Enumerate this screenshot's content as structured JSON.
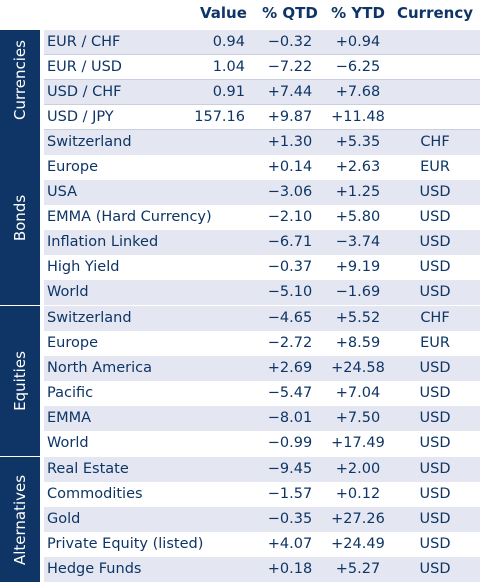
{
  "header": {
    "value": "Value",
    "qtd": "% QTD",
    "ytd": "% YTD",
    "currency": "Currency"
  },
  "groups": [
    {
      "label": "Currencies",
      "rows": [
        {
          "name": "EUR / CHF",
          "value": "0.94",
          "qtd": "−0.32",
          "ytd": "+0.94",
          "currency": ""
        },
        {
          "name": "EUR / USD",
          "value": "1.04",
          "qtd": "−7.22",
          "ytd": "−6.25",
          "currency": ""
        },
        {
          "name": "USD / CHF",
          "value": "0.91",
          "qtd": "+7.44",
          "ytd": "+7.68",
          "currency": ""
        },
        {
          "name": "USD / JPY",
          "value": "157.16",
          "qtd": "+9.87",
          "ytd": "+11.48",
          "currency": ""
        }
      ]
    },
    {
      "label": "Bonds",
      "rows": [
        {
          "name": "Switzerland",
          "value": "",
          "qtd": "+1.30",
          "ytd": "+5.35",
          "currency": "CHF"
        },
        {
          "name": "Europe",
          "value": "",
          "qtd": "+0.14",
          "ytd": "+2.63",
          "currency": "EUR"
        },
        {
          "name": "USA",
          "value": "",
          "qtd": "−3.06",
          "ytd": "+1.25",
          "currency": "USD"
        },
        {
          "name": "EMMA (Hard Currency)",
          "value": "",
          "qtd": "−2.10",
          "ytd": "+5.80",
          "currency": "USD"
        },
        {
          "name": "Inflation Linked",
          "value": "",
          "qtd": "−6.71",
          "ytd": "−3.74",
          "currency": "USD"
        },
        {
          "name": "High Yield",
          "value": "",
          "qtd": "−0.37",
          "ytd": "+9.19",
          "currency": "USD"
        },
        {
          "name": "World",
          "value": "",
          "qtd": "−5.10",
          "ytd": "−1.69",
          "currency": "USD"
        }
      ]
    },
    {
      "label": "Equities",
      "rows": [
        {
          "name": "Switzerland",
          "value": "",
          "qtd": "−4.65",
          "ytd": "+5.52",
          "currency": "CHF"
        },
        {
          "name": "Europe",
          "value": "",
          "qtd": "−2.72",
          "ytd": "+8.59",
          "currency": "EUR"
        },
        {
          "name": "North America",
          "value": "",
          "qtd": "+2.69",
          "ytd": "+24.58",
          "currency": "USD"
        },
        {
          "name": "Pacific",
          "value": "",
          "qtd": "−5.47",
          "ytd": "+7.04",
          "currency": "USD"
        },
        {
          "name": "EMMA",
          "value": "",
          "qtd": "−8.01",
          "ytd": "+7.50",
          "currency": "USD"
        },
        {
          "name": "World",
          "value": "",
          "qtd": "−0.99",
          "ytd": "+17.49",
          "currency": "USD"
        }
      ]
    },
    {
      "label": "Alternatives",
      "rows": [
        {
          "name": "Real Estate",
          "value": "",
          "qtd": "−9.45",
          "ytd": "+2.00",
          "currency": "USD"
        },
        {
          "name": "Commodities",
          "value": "",
          "qtd": "−1.57",
          "ytd": "+0.12",
          "currency": "USD"
        },
        {
          "name": "Gold",
          "value": "",
          "qtd": "−0.35",
          "ytd": "+27.26",
          "currency": "USD"
        },
        {
          "name": "Private Equity (listed)",
          "value": "",
          "qtd": "+4.07",
          "ytd": "+24.49",
          "currency": "USD"
        },
        {
          "name": "Hedge Funds",
          "value": "",
          "qtd": "+0.18",
          "ytd": "+5.27",
          "currency": "USD"
        }
      ]
    }
  ],
  "colors": {
    "navy": "#0e3565",
    "row_shade": "#e4e7f2",
    "divider": "#c9cfdf"
  }
}
